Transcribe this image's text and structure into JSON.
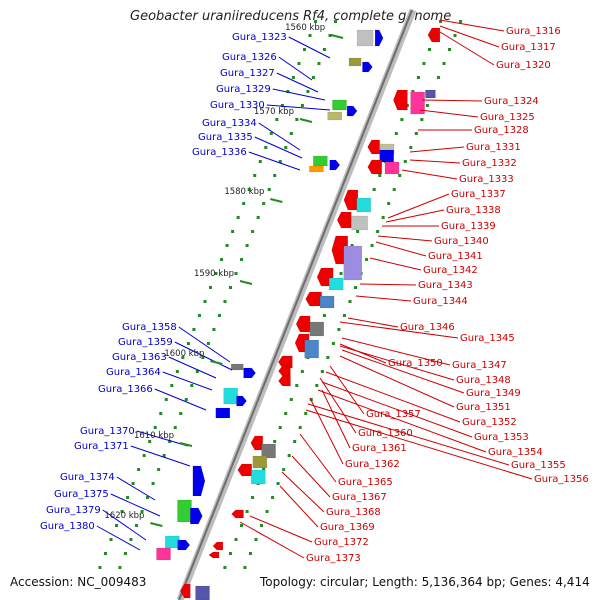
{
  "title": "Geobacter uraniireducens Rf4, complete genome",
  "footer": {
    "accession_label": "Accession:",
    "accession": "NC_009483",
    "topology_label": "Topology:",
    "topology": "circular",
    "length_label": "Length:",
    "length": "5,136,364 bp",
    "genes_label": "Genes:",
    "genes": "4,414"
  },
  "colors": {
    "left_label": "#0000cc",
    "right_label": "#cc0000",
    "forward_strand": "#ee0000",
    "reverse_strand": "#0000ee",
    "backbone": "#999999",
    "tick_dot": "#228b22"
  },
  "kbp_markers": [
    "1560 kbp",
    "1570 kbp",
    "1580 kbp",
    "1590 kbp",
    "1600 kbp",
    "1610 kbp",
    "1620 kbp"
  ],
  "left_genes": [
    "Gura_1323",
    "Gura_1326",
    "Gura_1327",
    "Gura_1329",
    "Gura_1330",
    "Gura_1334",
    "Gura_1335",
    "Gura_1336",
    "Gura_1358",
    "Gura_1359",
    "Gura_1363",
    "Gura_1364",
    "Gura_1366",
    "Gura_1370",
    "Gura_1371",
    "Gura_1374",
    "Gura_1375",
    "Gura_1379",
    "Gura_1380"
  ],
  "right_genes": [
    "Gura_1316",
    "Gura_1317",
    "Gura_1320",
    "Gura_1324",
    "Gura_1325",
    "Gura_1328",
    "Gura_1331",
    "Gura_1332",
    "Gura_1333",
    "Gura_1337",
    "Gura_1338",
    "Gura_1339",
    "Gura_1340",
    "Gura_1341",
    "Gura_1342",
    "Gura_1343",
    "Gura_1344",
    "Gura_1346",
    "Gura_1345",
    "Gura_1350",
    "Gura_1347",
    "Gura_1348",
    "Gura_1349",
    "Gura_1351",
    "Gura_1357",
    "Gura_1352",
    "Gura_1360",
    "Gura_1353",
    "Gura_1361",
    "Gura_1354",
    "Gura_1362",
    "Gura_1355",
    "Gura_1356",
    "Gura_1365",
    "Gura_1367",
    "Gura_1368",
    "Gura_1369",
    "Gura_1372",
    "Gura_1373"
  ]
}
